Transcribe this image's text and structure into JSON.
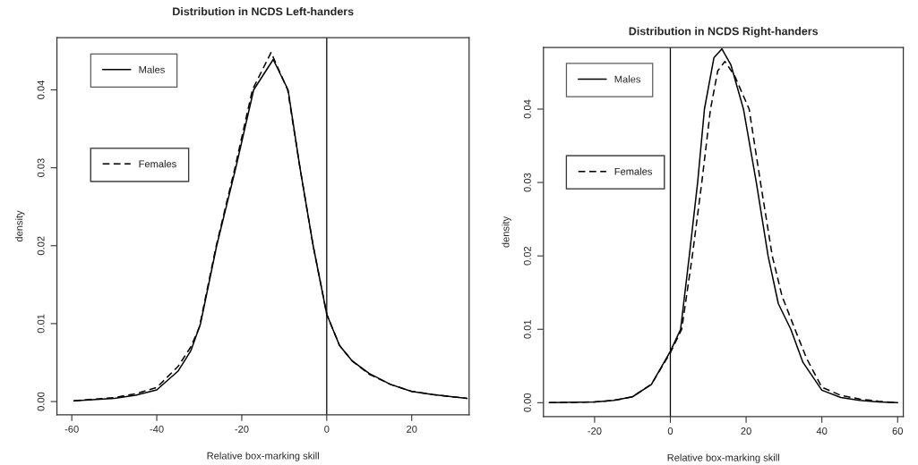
{
  "chart_data": [
    {
      "type": "line",
      "title": "Distribution in NCDS Left-handers",
      "xlabel": "Relative box-marking skill",
      "ylabel": "density",
      "xlim": [
        -63.5,
        33.5
      ],
      "xticks": [
        -60,
        -40,
        -20,
        0,
        20
      ],
      "ylim": [
        -0.0017,
        0.0467
      ],
      "yticks": [
        {
          "value": 0,
          "label": "0.00"
        },
        0.01,
        0.02,
        0.03,
        0.04
      ],
      "legend": "top left",
      "grid": false,
      "ref_lines": [
        {
          "axis": "x",
          "value": 0,
          "color": "#000000",
          "line_style": "solid"
        }
      ],
      "series": [
        {
          "name": "Males",
          "color": "#000000",
          "line_style": "solid",
          "x": [
            -59.5,
            -50,
            -45,
            -40,
            -35,
            -32,
            -29.7,
            -25.9,
            -21.4,
            -17.2,
            -12.6,
            -9.1,
            -6.3,
            -3.2,
            0,
            3,
            6,
            10,
            15,
            20,
            25,
            33
          ],
          "values": [
            0.0001,
            0.0004,
            0.0008,
            0.0015,
            0.0039,
            0.0065,
            0.01,
            0.02,
            0.03,
            0.04,
            0.0439,
            0.04,
            0.03,
            0.02,
            0.0112,
            0.0072,
            0.0052,
            0.0036,
            0.0022,
            0.0013,
            0.0009,
            0.0004
          ]
        },
        {
          "name": "Females",
          "color": "#000000",
          "line_style": "dashed",
          "x": [
            -59.5,
            -50,
            -45,
            -40,
            -35,
            -32,
            -30,
            -26,
            -21.6,
            -17.5,
            -13.1,
            -9.2,
            -6.3,
            -3.2,
            0,
            3,
            6,
            10,
            15,
            20,
            25,
            33
          ],
          "values": [
            0.0001,
            0.0005,
            0.001,
            0.0018,
            0.0045,
            0.007,
            0.0095,
            0.02,
            0.03,
            0.04,
            0.0448,
            0.04,
            0.03,
            0.02,
            0.0112,
            0.0072,
            0.0052,
            0.0035,
            0.0022,
            0.0013,
            0.0009,
            0.0004
          ]
        }
      ]
    },
    {
      "type": "line",
      "title": "Distribution in NCDS Right-handers",
      "xlabel": "Relative box-marking skill",
      "ylabel": "density",
      "xlim": [
        -33.5,
        61.5
      ],
      "xticks": [
        -20,
        0,
        20,
        40,
        60
      ],
      "ylim": [
        -0.0019,
        0.0484
      ],
      "yticks": [
        {
          "value": 0,
          "label": "0.00"
        },
        0.01,
        0.02,
        0.03,
        0.04
      ],
      "legend": "top left",
      "grid": false,
      "ref_lines": [
        {
          "axis": "x",
          "value": 0,
          "color": "#000000",
          "line_style": "solid"
        }
      ],
      "series": [
        {
          "name": "Males",
          "color": "#000000",
          "line_style": "solid",
          "x": [
            -32,
            -20,
            -15,
            -10,
            -5,
            0,
            2.7,
            5,
            7.2,
            9,
            11.5,
            13.6,
            16,
            19.3,
            22.7,
            25.8,
            28.5,
            31.8,
            35,
            40,
            45,
            50,
            55,
            60
          ],
          "values": [
            0,
            0.0001,
            0.0003,
            0.0008,
            0.0025,
            0.007,
            0.01,
            0.02,
            0.03,
            0.04,
            0.047,
            0.0482,
            0.046,
            0.04,
            0.03,
            0.02,
            0.0135,
            0.01,
            0.0055,
            0.0017,
            0.0007,
            0.0003,
            0.0001,
            0
          ]
        },
        {
          "name": "Females",
          "color": "#000000",
          "line_style": "dashed",
          "x": [
            -32,
            -20,
            -15,
            -10,
            -5,
            0,
            3,
            5.8,
            8.3,
            10.6,
            12.5,
            14.4,
            17,
            20.8,
            23.8,
            26.9,
            29.5,
            32.9,
            36,
            40,
            45,
            50,
            55,
            60
          ],
          "values": [
            0,
            0.0001,
            0.0003,
            0.0008,
            0.0025,
            0.0068,
            0.01,
            0.02,
            0.03,
            0.04,
            0.0452,
            0.0465,
            0.0445,
            0.04,
            0.03,
            0.02,
            0.0145,
            0.01,
            0.006,
            0.0021,
            0.001,
            0.0005,
            0.0002,
            0
          ]
        }
      ]
    }
  ]
}
